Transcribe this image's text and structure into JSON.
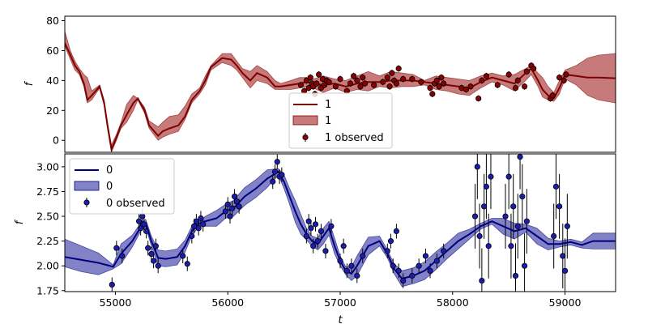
{
  "chart_data": [
    {
      "type": "line",
      "panel": "top",
      "xlabel": "",
      "ylabel": "f",
      "xlim": [
        54550,
        59450
      ],
      "ylim": [
        -8,
        83
      ],
      "yticks": [
        0,
        20,
        40,
        60,
        80
      ],
      "colors": {
        "line": "#800000",
        "band": "#a83232",
        "marker": "#8b0000"
      },
      "legend": {
        "location": "lower-center",
        "entries": [
          "1",
          "1",
          "1 observed"
        ]
      },
      "series": [
        {
          "name": "1",
          "kind": "model",
          "x": [
            54550,
            54600,
            54640,
            54680,
            54720,
            54750,
            54790,
            54860,
            54900,
            54930,
            54965,
            55010,
            55050,
            55100,
            55160,
            55200,
            55260,
            55300,
            55380,
            55420,
            55480,
            55560,
            55620,
            55680,
            55750,
            55800,
            55850,
            55950,
            56030,
            56080,
            56130,
            56200,
            56260,
            56350,
            56420,
            56470,
            56560,
            56640,
            56700,
            56760,
            56850,
            56950,
            57050,
            57150,
            57250,
            57350,
            57450,
            57550,
            57650,
            57750,
            57850,
            57950,
            58050,
            58150,
            58250,
            58350,
            58450,
            58550,
            58650,
            58700,
            58760,
            58800,
            58850,
            58900,
            58950,
            59000,
            59100,
            59200,
            59300,
            59450
          ],
          "y": [
            65,
            57,
            50,
            46,
            38,
            27,
            30,
            36,
            25,
            10,
            -6,
            2,
            10,
            17,
            25,
            28,
            20,
            10,
            3,
            6,
            8,
            10,
            16,
            27,
            33,
            40,
            49,
            55,
            54,
            50,
            45,
            40,
            45,
            42,
            36,
            36,
            37,
            38,
            39,
            38,
            37,
            38,
            36,
            38,
            39,
            39,
            40,
            40,
            40,
            39,
            38,
            37,
            36,
            35,
            39,
            42,
            40,
            38,
            45,
            48,
            40,
            34,
            30,
            28,
            35,
            44,
            43,
            42,
            42,
            41.5
          ],
          "upper": [
            73,
            60,
            53,
            48,
            44,
            42,
            33,
            37,
            27,
            12,
            -3,
            4,
            12,
            24,
            30,
            28,
            22,
            13,
            9,
            12,
            16,
            17,
            23,
            31,
            35,
            43,
            50,
            58,
            58,
            53,
            48,
            46,
            50,
            46,
            40,
            38,
            40,
            42,
            42,
            41,
            43,
            41,
            40,
            43,
            46,
            43,
            46,
            45,
            44,
            40,
            43,
            42,
            41,
            40,
            43,
            45,
            43,
            44,
            48,
            50,
            45,
            42,
            36,
            32,
            40,
            47,
            50,
            55,
            57,
            58
          ],
          "lower": [
            63,
            54,
            47,
            44,
            36,
            25,
            27,
            35,
            23,
            8,
            -8,
            0,
            8,
            12,
            20,
            27,
            18,
            8,
            0,
            2,
            4,
            6,
            14,
            25,
            31,
            37,
            47,
            52,
            50,
            47,
            42,
            35,
            40,
            38,
            34,
            34,
            34,
            35,
            36,
            35,
            32,
            35,
            32,
            34,
            33,
            36,
            35,
            36,
            36,
            37,
            34,
            33,
            31,
            30,
            35,
            39,
            37,
            33,
            40,
            44,
            36,
            29,
            27,
            26,
            31,
            41,
            37,
            30,
            27,
            25
          ]
        },
        {
          "name": "1 observed",
          "kind": "observed",
          "x": [
            56650,
            56680,
            56700,
            56720,
            56735,
            56750,
            56760,
            56775,
            56790,
            56810,
            56830,
            56845,
            56860,
            56880,
            56900,
            56960,
            57000,
            57060,
            57090,
            57120,
            57150,
            57180,
            57200,
            57220,
            57300,
            57380,
            57420,
            57440,
            57460,
            57480,
            57500,
            57520,
            57560,
            57640,
            57720,
            57800,
            57820,
            57840,
            57860,
            57880,
            57900,
            57920,
            58080,
            58120,
            58160,
            58230,
            58260,
            58300,
            58400,
            58500,
            58560,
            58580,
            58640,
            58660,
            58700,
            58720,
            58870,
            58890,
            58950,
            58990,
            59010
          ],
          "y": [
            37,
            33,
            40,
            35,
            42,
            38,
            36,
            31,
            38,
            44,
            35,
            41,
            37,
            40,
            39,
            36,
            41,
            33,
            38,
            43,
            40,
            36,
            42,
            38,
            37,
            39,
            42,
            36,
            45,
            40,
            38,
            48,
            41,
            41,
            39,
            35,
            31,
            38,
            40,
            36,
            42,
            38,
            35,
            34,
            36,
            28,
            40,
            43,
            37,
            44,
            35,
            40,
            36,
            46,
            50,
            48,
            28,
            30,
            42,
            40,
            44
          ]
        }
      ]
    },
    {
      "type": "line",
      "panel": "bottom",
      "xlabel": "t",
      "ylabel": "f",
      "xlim": [
        54550,
        59450
      ],
      "ylim": [
        1.74,
        3.13
      ],
      "xticks": [
        55000,
        56000,
        57000,
        58000,
        59000
      ],
      "yticks": [
        1.75,
        2.0,
        2.25,
        2.5,
        2.75,
        3.0
      ],
      "colors": {
        "line": "#00007f",
        "band": "#3f3fa8",
        "marker": "#1c1cb0"
      },
      "legend": {
        "location": "top-left",
        "entries": [
          "0",
          "0",
          "0 observed"
        ]
      },
      "series": [
        {
          "name": "0",
          "kind": "model",
          "x": [
            54550,
            54700,
            54850,
            54980,
            55050,
            55150,
            55230,
            55270,
            55320,
            55380,
            55450,
            55550,
            55620,
            55680,
            55750,
            55800,
            55900,
            55980,
            56050,
            56150,
            56250,
            56350,
            56450,
            56500,
            56550,
            56600,
            56650,
            56700,
            56750,
            56800,
            56850,
            56900,
            56950,
            57000,
            57050,
            57100,
            57150,
            57250,
            57350,
            57420,
            57480,
            57550,
            57650,
            57750,
            57850,
            57950,
            58050,
            58150,
            58250,
            58350,
            58450,
            58550,
            58650,
            58750,
            58850,
            58950,
            59050,
            59150,
            59250,
            59450
          ],
          "y": [
            2.09,
            2.06,
            2.03,
            1.99,
            2.12,
            2.25,
            2.4,
            2.43,
            2.25,
            2.08,
            2.07,
            2.09,
            2.2,
            2.35,
            2.43,
            2.45,
            2.48,
            2.55,
            2.58,
            2.7,
            2.78,
            2.88,
            2.95,
            2.85,
            2.7,
            2.55,
            2.42,
            2.32,
            2.25,
            2.22,
            2.3,
            2.38,
            2.2,
            2.05,
            1.95,
            1.92,
            2.0,
            2.2,
            2.25,
            2.12,
            1.97,
            1.87,
            1.9,
            1.95,
            2.05,
            2.15,
            2.25,
            2.32,
            2.4,
            2.45,
            2.4,
            2.35,
            2.38,
            2.3,
            2.22,
            2.22,
            2.24,
            2.21,
            2.25,
            2.25
          ]
        },
        {
          "name": "0",
          "kind": "interval",
          "x": [
            54550,
            54700,
            54850,
            54980,
            55050,
            55150,
            55230,
            55270,
            55320,
            55380,
            55450,
            55550,
            55620,
            55680,
            55750,
            55800,
            55900,
            55980,
            56050,
            56150,
            56250,
            56350,
            56450,
            56500,
            56550,
            56600,
            56650,
            56700,
            56750,
            56800,
            56850,
            56900,
            56950,
            57000,
            57050,
            57100,
            57150,
            57250,
            57350,
            57420,
            57480,
            57550,
            57650,
            57750,
            57850,
            57950,
            58050,
            58150,
            58250,
            58350,
            58450,
            58550,
            58650,
            58750,
            58850,
            58950,
            59050,
            59150,
            59250,
            59450
          ],
          "upper": [
            2.27,
            2.2,
            2.13,
            2.01,
            2.22,
            2.31,
            2.44,
            2.47,
            2.3,
            2.16,
            2.15,
            2.17,
            2.26,
            2.4,
            2.45,
            2.5,
            2.56,
            2.62,
            2.66,
            2.79,
            2.87,
            2.97,
            2.98,
            2.92,
            2.78,
            2.66,
            2.52,
            2.38,
            2.3,
            2.28,
            2.38,
            2.45,
            2.28,
            2.1,
            1.99,
            1.99,
            2.1,
            2.29,
            2.3,
            2.16,
            2.02,
            1.95,
            1.98,
            2.04,
            2.14,
            2.23,
            2.33,
            2.37,
            2.43,
            2.48,
            2.48,
            2.43,
            2.42,
            2.38,
            2.28,
            2.25,
            2.27,
            2.24,
            2.33,
            2.33
          ],
          "lower": [
            1.99,
            1.94,
            1.91,
            1.97,
            2.02,
            2.19,
            2.36,
            2.39,
            2.2,
            2.0,
            1.99,
            2.01,
            2.14,
            2.3,
            2.41,
            2.4,
            2.4,
            2.48,
            2.5,
            2.61,
            2.69,
            2.79,
            2.92,
            2.78,
            2.62,
            2.44,
            2.32,
            2.26,
            2.2,
            2.16,
            2.22,
            2.31,
            2.12,
            2.0,
            1.91,
            1.85,
            1.9,
            2.11,
            2.2,
            2.08,
            1.92,
            1.79,
            1.82,
            1.86,
            1.96,
            2.07,
            2.17,
            2.27,
            2.37,
            2.42,
            2.32,
            2.27,
            2.34,
            2.22,
            2.16,
            2.19,
            2.21,
            2.18,
            2.17,
            2.17
          ]
        },
        {
          "name": "0 observed",
          "kind": "observed",
          "x": [
            54970,
            55010,
            55060,
            55210,
            55225,
            55240,
            55255,
            55275,
            55290,
            55320,
            55340,
            55360,
            55380,
            55600,
            55640,
            55680,
            55700,
            55720,
            55740,
            55760,
            55780,
            55980,
            56000,
            56020,
            56040,
            56060,
            56080,
            56100,
            56400,
            56420,
            56440,
            56460,
            56480,
            56700,
            56720,
            56740,
            56760,
            56780,
            56800,
            56830,
            56870,
            56920,
            57000,
            57030,
            57060,
            57100,
            57150,
            57200,
            57420,
            57450,
            57470,
            57500,
            57520,
            57560,
            57640,
            57700,
            57760,
            57800,
            57860,
            57920,
            58200,
            58220,
            58240,
            58260,
            58280,
            58300,
            58320,
            58340,
            58470,
            58500,
            58520,
            58540,
            58560,
            58580,
            58600,
            58620,
            58640,
            58660,
            58900,
            58920,
            58950,
            58980,
            59000,
            59020
          ],
          "y": [
            1.81,
            2.18,
            2.1,
            2.45,
            2.38,
            2.5,
            2.42,
            2.35,
            2.18,
            2.12,
            2.05,
            2.2,
            2.0,
            2.1,
            2.02,
            2.3,
            2.4,
            2.45,
            2.38,
            2.48,
            2.42,
            2.55,
            2.62,
            2.5,
            2.58,
            2.7,
            2.65,
            2.6,
            2.85,
            2.95,
            3.05,
            2.9,
            2.92,
            2.3,
            2.45,
            2.38,
            2.2,
            2.42,
            2.25,
            2.35,
            2.15,
            2.4,
            2.05,
            2.2,
            1.95,
            2.0,
            1.9,
            2.1,
            2.15,
            2.25,
            2.0,
            2.35,
            1.95,
            1.85,
            1.9,
            2.0,
            2.1,
            1.95,
            2.05,
            2.15,
            2.5,
            3.0,
            2.3,
            1.85,
            2.6,
            2.8,
            2.2,
            2.9,
            2.5,
            2.9,
            2.2,
            2.6,
            1.9,
            2.4,
            3.1,
            2.7,
            2.0,
            2.45,
            2.3,
            2.8,
            2.6,
            2.1,
            1.95,
            2.4
          ]
        }
      ]
    }
  ]
}
